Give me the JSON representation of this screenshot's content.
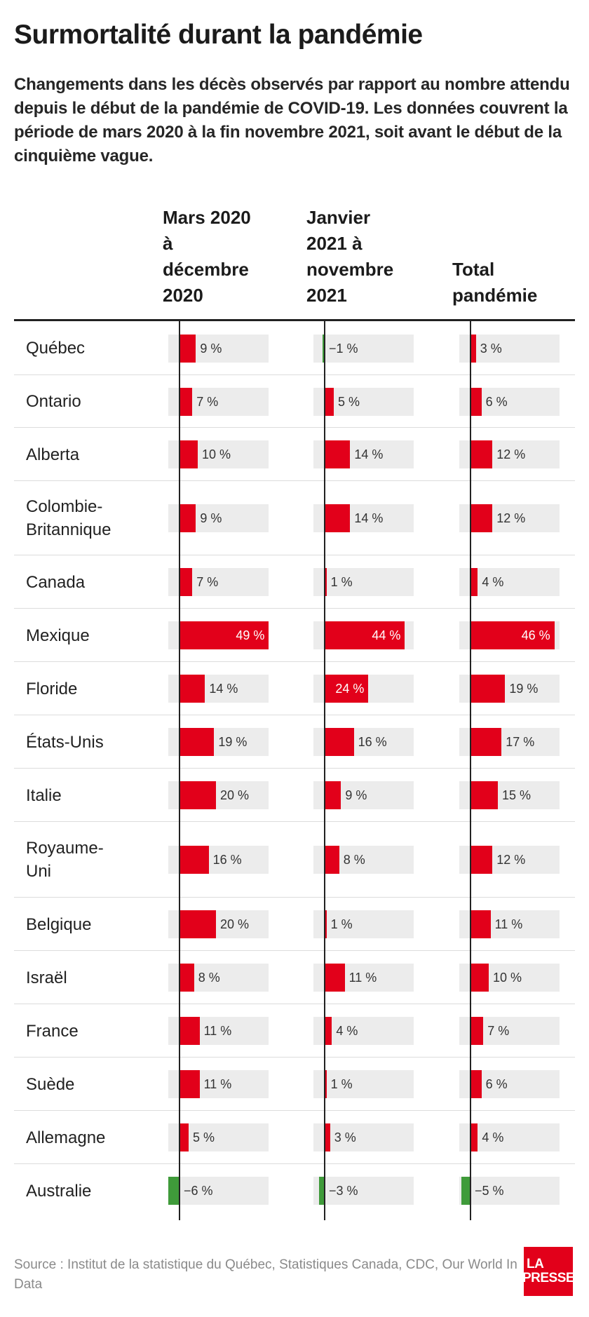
{
  "title": "Surmortalité durant la pandémie",
  "subtitle": "Changements dans les décès observés par rapport au nombre attendu depuis le début de la pandémie de COVID-19. Les données couvrent la période de mars 2020 à la fin novembre 2021, soit avant le début de la cinquième vague.",
  "source": "Source : Institut de la statistique du Québec, Statistiques Canada, CDC, Our World In Data",
  "logo": {
    "line1": "LA",
    "line2": "PRESSE"
  },
  "colors": {
    "positive": "#e2001a",
    "negative": "#3f9b3a",
    "track": "#ececec"
  },
  "chart_data": {
    "type": "bar",
    "unit": "%",
    "categories": [
      "Québec",
      "Ontario",
      "Alberta",
      "Colombie-Britannique",
      "Canada",
      "Mexique",
      "Floride",
      "États-Unis",
      "Italie",
      "Royaume-Uni",
      "Belgique",
      "Israël",
      "France",
      "Suède",
      "Allemagne",
      "Australie"
    ],
    "category_display": [
      "Québec",
      "Ontario",
      "Alberta",
      "Colombie-\nBritannique",
      "Canada",
      "Mexique",
      "Floride",
      "États-Unis",
      "Italie",
      "Royaume-\nUni",
      "Belgique",
      "Israël",
      "France",
      "Suède",
      "Allemagne",
      "Australie"
    ],
    "series": [
      {
        "name": "Mars 2020 à décembre 2020",
        "values": [
          9,
          7,
          10,
          9,
          7,
          49,
          14,
          19,
          20,
          16,
          20,
          8,
          11,
          11,
          5,
          -6
        ]
      },
      {
        "name": "Janvier 2021 à novembre 2021",
        "values": [
          -1,
          5,
          14,
          14,
          1,
          44,
          24,
          16,
          9,
          8,
          1,
          11,
          4,
          1,
          3,
          -3
        ]
      },
      {
        "name": "Total pandémie",
        "values": [
          3,
          6,
          12,
          12,
          4,
          46,
          19,
          17,
          15,
          12,
          11,
          10,
          7,
          6,
          4,
          -5
        ]
      }
    ],
    "column_headers": [
      "Mars 2020\nà\ndécembre\n2020",
      "Janvier\n2021 à\nnovembre\n2021",
      "Total\npandémie"
    ],
    "value_labels": [
      [
        "9 %",
        "7 %",
        "10 %",
        "9 %",
        "7 %",
        "49 %",
        "14 %",
        "19 %",
        "20 %",
        "16 %",
        "20 %",
        "8 %",
        "11 %",
        "11 %",
        "5 %",
        "−6 %"
      ],
      [
        "−1 %",
        "5 %",
        "14 %",
        "14 %",
        "1 %",
        "44 %",
        "24 %",
        "16 %",
        "9 %",
        "8 %",
        "1 %",
        "11 %",
        "4 %",
        "1 %",
        "3 %",
        "−3 %"
      ],
      [
        "3 %",
        "6 %",
        "12 %",
        "12 %",
        "4 %",
        "46 %",
        "19 %",
        "17 %",
        "15 %",
        "12 %",
        "11 %",
        "10 %",
        "7 %",
        "6 %",
        "4 %",
        "−5 %"
      ]
    ],
    "xlim": [
      -7,
      50
    ],
    "grid": false,
    "legend": "none"
  }
}
